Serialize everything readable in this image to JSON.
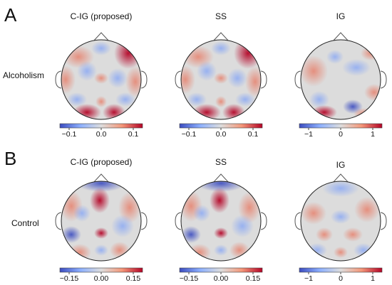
{
  "panels": [
    {
      "letter": "A",
      "row_label": "Alcoholism",
      "columns": [
        {
          "title": "C-IG (proposed)",
          "ticks": [
            "−0.1",
            "0.0",
            "0.1"
          ]
        },
        {
          "title": "SS",
          "ticks": [
            "−0.1",
            "0.0",
            "0.1"
          ]
        },
        {
          "title": "IG",
          "ticks": [
            "−1",
            "0",
            "1"
          ]
        }
      ]
    },
    {
      "letter": "B",
      "row_label": "Control",
      "columns": [
        {
          "title": "C-IG (proposed)",
          "ticks": [
            "−0.15",
            "0.00",
            "0.15"
          ]
        },
        {
          "title": "SS",
          "ticks": [
            "−0.15",
            "0.00",
            "0.15"
          ]
        },
        {
          "title": "IG",
          "ticks": [
            "−1",
            "0",
            "1"
          ]
        }
      ]
    }
  ],
  "colors": {
    "negative": "#3b4cc0",
    "neutral": "#dddddd",
    "positive": "#b40426"
  }
}
